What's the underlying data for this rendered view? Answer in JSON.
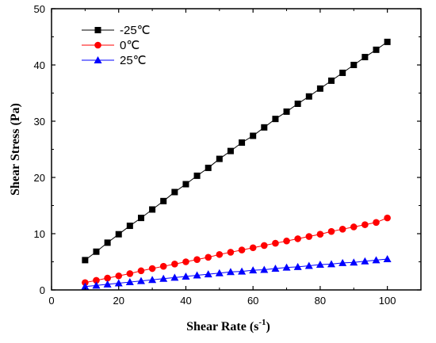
{
  "chart_data": {
    "type": "line",
    "xlabel": "Shear Rate (s",
    "xlabel_sup": "-1",
    "xlabel_end": ")",
    "ylabel": "Shear Stress (Pa)",
    "xlim": [
      0,
      110
    ],
    "ylim": [
      0,
      50
    ],
    "xticks": [
      0,
      20,
      40,
      60,
      80,
      100
    ],
    "yticks": [
      0,
      10,
      20,
      30,
      40,
      50
    ],
    "grid": false,
    "legend_position": "top-left",
    "x": [
      10,
      13.33,
      16.67,
      20,
      23.33,
      26.67,
      30,
      33.33,
      36.67,
      40,
      43.33,
      46.67,
      50,
      53.33,
      56.67,
      60,
      63.33,
      66.67,
      70,
      73.33,
      76.67,
      80,
      83.33,
      86.67,
      90,
      93.33,
      96.67,
      100
    ],
    "series": [
      {
        "name": "-25℃",
        "color": "#000000",
        "marker": "square",
        "values": [
          5.3,
          6.8,
          8.4,
          9.9,
          11.4,
          12.8,
          14.3,
          15.8,
          17.4,
          18.8,
          20.3,
          21.7,
          23.3,
          24.7,
          26.2,
          27.4,
          28.9,
          30.4,
          31.7,
          33.1,
          34.4,
          35.8,
          37.2,
          38.6,
          40.0,
          41.4,
          42.7,
          44.1
        ]
      },
      {
        "name": "0℃",
        "color": "#ff0000",
        "marker": "circle",
        "values": [
          1.3,
          1.7,
          2.1,
          2.5,
          2.9,
          3.4,
          3.8,
          4.2,
          4.6,
          5.0,
          5.4,
          5.8,
          6.3,
          6.7,
          7.1,
          7.5,
          7.9,
          8.3,
          8.7,
          9.1,
          9.5,
          9.9,
          10.4,
          10.8,
          11.2,
          11.6,
          12.0,
          12.8
        ]
      },
      {
        "name": "25℃",
        "color": "#0000ff",
        "marker": "triangle",
        "values": [
          0.6,
          0.8,
          1.0,
          1.2,
          1.4,
          1.6,
          1.8,
          2.0,
          2.2,
          2.4,
          2.6,
          2.8,
          3.0,
          3.2,
          3.3,
          3.5,
          3.6,
          3.8,
          4.0,
          4.1,
          4.3,
          4.5,
          4.6,
          4.8,
          4.9,
          5.1,
          5.3,
          5.5
        ]
      }
    ]
  }
}
